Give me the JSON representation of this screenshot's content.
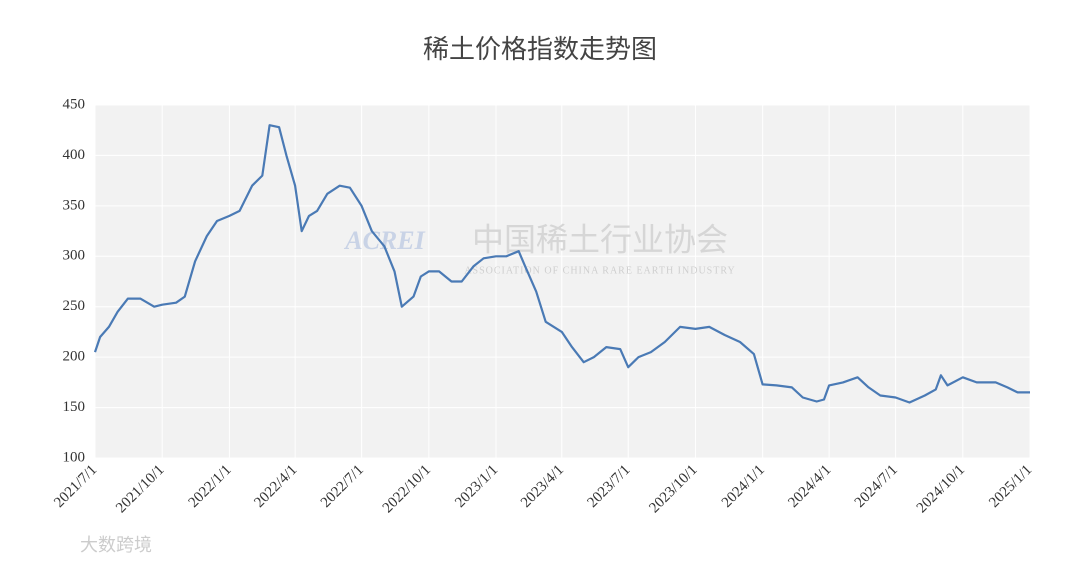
{
  "chart_data": {
    "type": "line",
    "title": "稀土价格指数走势图",
    "watermark": {
      "logo": "ACREI",
      "name": "中国稀土行业协会",
      "subtitle": "ASSOCIATION OF CHINA RARE EARTH INDUSTRY",
      "source": "大数跨境"
    },
    "x": [
      "2021/7/1",
      "2021/7/8",
      "2021/7/20",
      "2021/8/1",
      "2021/8/15",
      "2021/9/1",
      "2021/9/20",
      "2021/10/1",
      "2021/10/20",
      "2021/11/1",
      "2021/11/15",
      "2021/12/1",
      "2021/12/15",
      "2022/1/1",
      "2022/1/15",
      "2022/2/1",
      "2022/2/15",
      "2022/2/25",
      "2022/3/10",
      "2022/3/20",
      "2022/4/1",
      "2022/4/10",
      "2022/4/20",
      "2022/5/1",
      "2022/5/15",
      "2022/6/1",
      "2022/6/15",
      "2022/7/1",
      "2022/7/15",
      "2022/8/1",
      "2022/8/15",
      "2022/8/25",
      "2022/9/10",
      "2022/9/20",
      "2022/10/1",
      "2022/10/15",
      "2022/11/1",
      "2022/11/15",
      "2022/12/1",
      "2022/12/15",
      "2023/1/1",
      "2023/1/15",
      "2023/2/1",
      "2023/2/10",
      "2023/2/25",
      "2023/3/10",
      "2023/4/1",
      "2023/4/15",
      "2023/5/1",
      "2023/5/15",
      "2023/6/1",
      "2023/6/20",
      "2023/7/1",
      "2023/7/15",
      "2023/8/1",
      "2023/8/20",
      "2023/9/10",
      "2023/10/1",
      "2023/10/20",
      "2023/11/10",
      "2023/12/1",
      "2023/12/20",
      "2024/1/1",
      "2024/1/20",
      "2024/2/10",
      "2024/2/25",
      "2024/3/15",
      "2024/3/25",
      "2024/4/1",
      "2024/4/20",
      "2024/5/10",
      "2024/5/25",
      "2024/6/10",
      "2024/7/1",
      "2024/7/20",
      "2024/8/10",
      "2024/8/25",
      "2024/9/1",
      "2024/9/10",
      "2024/10/1",
      "2024/10/20",
      "2024/11/15",
      "2024/12/1",
      "2024/12/15",
      "2025/1/1"
    ],
    "series": [
      {
        "name": "稀土价格指数",
        "color": "#4a7ab5",
        "values": [
          205,
          220,
          230,
          245,
          258,
          258,
          250,
          252,
          254,
          260,
          295,
          320,
          335,
          340,
          345,
          370,
          380,
          430,
          428,
          400,
          370,
          325,
          340,
          345,
          362,
          370,
          368,
          350,
          325,
          310,
          285,
          250,
          260,
          280,
          285,
          285,
          275,
          275,
          290,
          298,
          300,
          300,
          305,
          290,
          265,
          235,
          225,
          210,
          195,
          200,
          210,
          208,
          190,
          200,
          205,
          215,
          230,
          228,
          230,
          222,
          215,
          203,
          173,
          172,
          170,
          160,
          156,
          158,
          172,
          175,
          180,
          170,
          162,
          160,
          155,
          162,
          168,
          182,
          172,
          180,
          175,
          175,
          170,
          165,
          165
        ]
      }
    ],
    "xlim": [
      "2021/7/1",
      "2025/1/1"
    ],
    "xticks": [
      "2021/7/1",
      "2021/10/1",
      "2022/1/1",
      "2022/4/1",
      "2022/7/1",
      "2022/10/1",
      "2023/1/1",
      "2023/4/1",
      "2023/7/1",
      "2023/10/1",
      "2024/1/1",
      "2024/4/1",
      "2024/7/1",
      "2024/10/1",
      "2025/1/1"
    ],
    "ylim": [
      100,
      450
    ],
    "yticks": [
      100,
      150,
      200,
      250,
      300,
      350,
      400,
      450
    ],
    "grid": true
  }
}
